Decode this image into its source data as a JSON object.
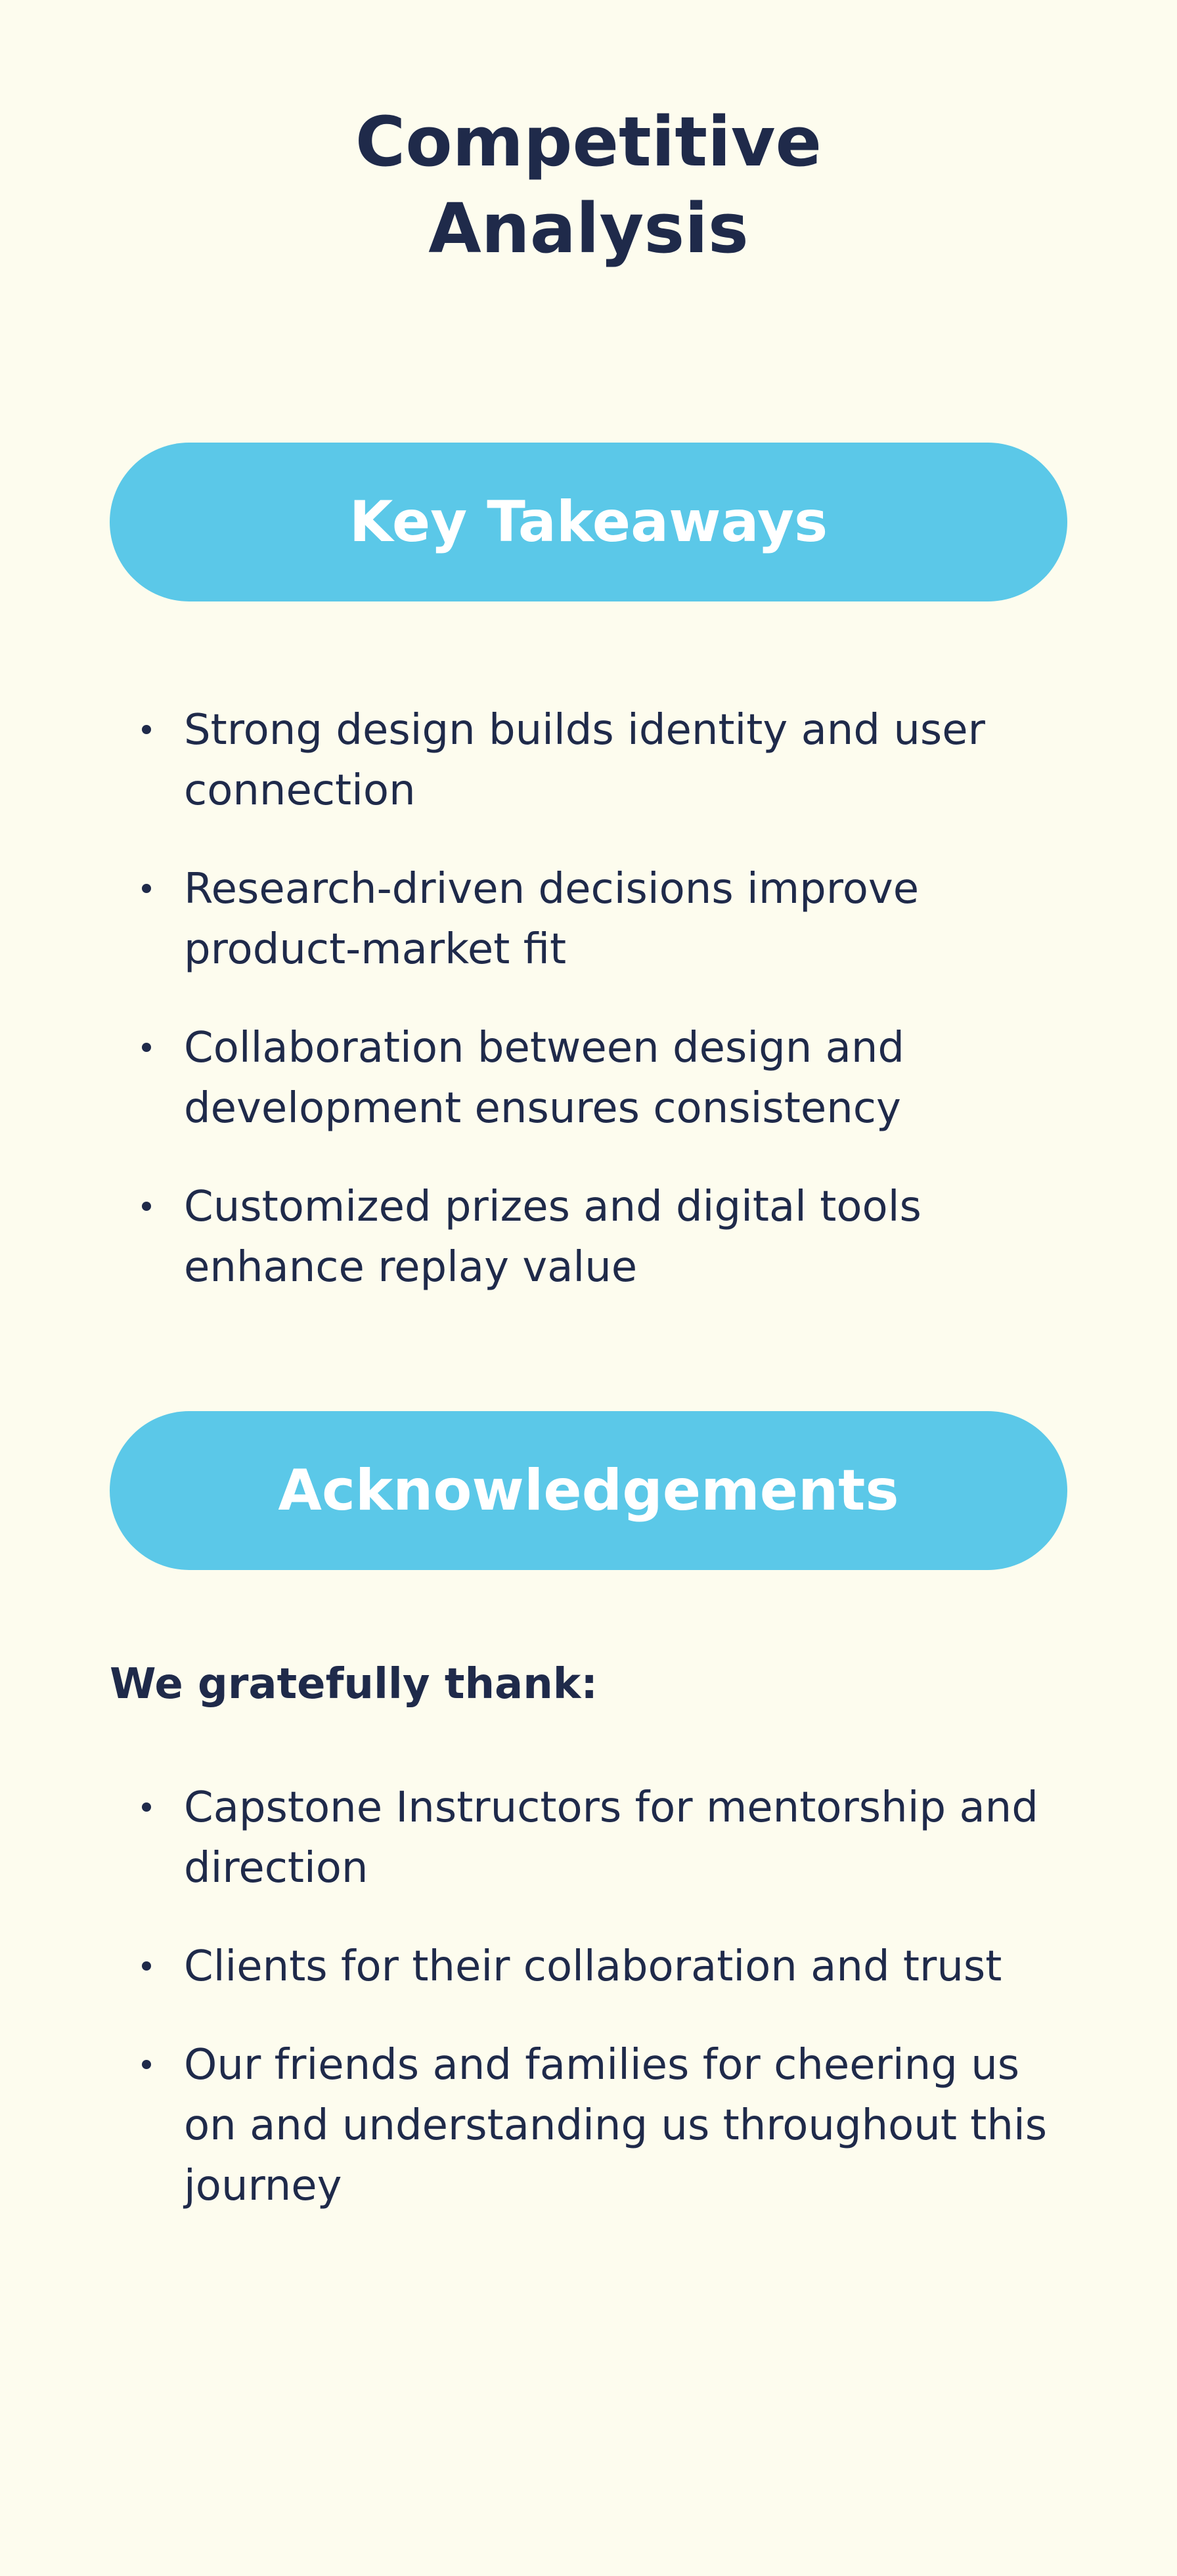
{
  "title": {
    "line1": "Competitive",
    "line2": "Analysis"
  },
  "key_takeaways": {
    "heading": "Key Takeaways",
    "items": [
      "Strong design builds identity and user connection",
      "Research-driven decisions improve product-market fit",
      "Collaboration between design and development ensures consistency",
      "Customized prizes and digital tools enhance replay value"
    ]
  },
  "acknowledgements": {
    "heading": "Acknowledgements",
    "intro": "We gratefully thank:",
    "items": [
      "Capstone Instructors for mentorship and direction",
      "Clients for their collaboration and trust",
      "Our friends and families for cheering us on and understanding us throughout this journey"
    ]
  },
  "colors": {
    "background": "#fdfcee",
    "pill": "#5bc8e8",
    "text": "#1f2a4a"
  }
}
